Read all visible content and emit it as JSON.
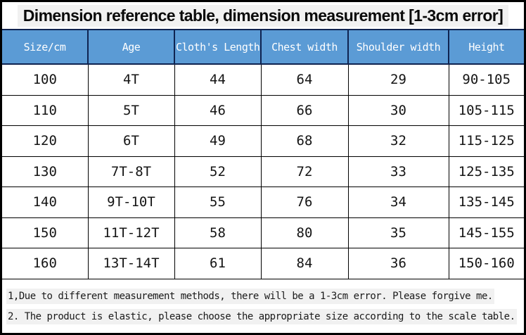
{
  "title": "Dimension reference table, dimension measurement [1-3cm error]",
  "table": {
    "headers": [
      "Size/cm",
      "Age",
      "Cloth's Length",
      "Chest width",
      "Shoulder width",
      "Height"
    ],
    "rows": [
      [
        "100",
        "4T",
        "44",
        "64",
        "29",
        "90-105"
      ],
      [
        "110",
        "5T",
        "46",
        "66",
        "30",
        "105-115"
      ],
      [
        "120",
        "6T",
        "49",
        "68",
        "32",
        "115-125"
      ],
      [
        "130",
        "7T-8T",
        "52",
        "72",
        "33",
        "125-135"
      ],
      [
        "140",
        "9T-10T",
        "55",
        "76",
        "34",
        "135-145"
      ],
      [
        "150",
        "11T-12T",
        "58",
        "80",
        "35",
        "145-155"
      ],
      [
        "160",
        "13T-14T",
        "61",
        "84",
        "36",
        "150-160"
      ]
    ]
  },
  "notes": [
    "1,Due to different measurement methods, there will be a 1-3cm error. Please forgive me.",
    "2. The product is elastic, please choose the appropriate size according to the scale table."
  ],
  "colors": {
    "header_bg": "#5b9bd5",
    "header_text": "#ffffff",
    "header_divider": "#0f2350",
    "cell_border": "#000000",
    "highlight_bg": "#f1f1f1"
  }
}
